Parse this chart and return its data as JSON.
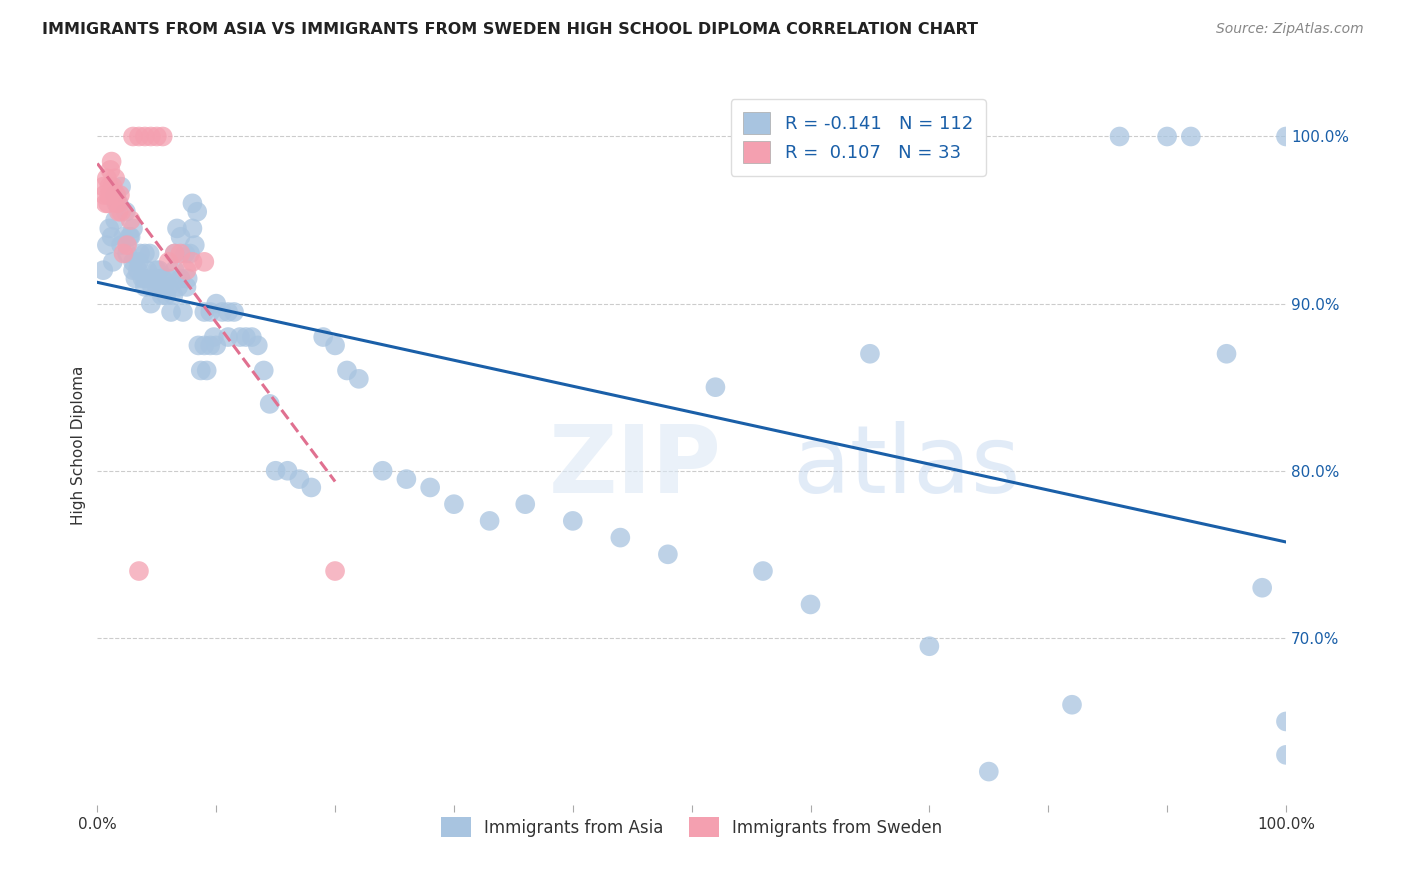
{
  "title": "IMMIGRANTS FROM ASIA VS IMMIGRANTS FROM SWEDEN HIGH SCHOOL DIPLOMA CORRELATION CHART",
  "source": "Source: ZipAtlas.com",
  "ylabel": "High School Diploma",
  "xlim": [
    0.0,
    1.0
  ],
  "ylim": [
    0.6,
    1.03
  ],
  "y_ticks_right": [
    0.7,
    0.8,
    0.9,
    1.0
  ],
  "y_tick_labels_right": [
    "70.0%",
    "80.0%",
    "90.0%",
    "100.0%"
  ],
  "asia_R": -0.141,
  "asia_N": 112,
  "sweden_R": 0.107,
  "sweden_N": 33,
  "asia_color": "#a8c4e0",
  "sweden_color": "#f4a0b0",
  "asia_line_color": "#1a5fa8",
  "sweden_line_color": "#e07090",
  "watermark_zip": "ZIP",
  "watermark_atlas": "atlas",
  "asia_x": [
    0.005,
    0.008,
    0.01,
    0.012,
    0.013,
    0.015,
    0.015,
    0.016,
    0.018,
    0.02,
    0.02,
    0.022,
    0.024,
    0.025,
    0.027,
    0.028,
    0.03,
    0.03,
    0.03,
    0.032,
    0.034,
    0.035,
    0.036,
    0.038,
    0.04,
    0.04,
    0.04,
    0.042,
    0.044,
    0.045,
    0.046,
    0.048,
    0.05,
    0.05,
    0.05,
    0.052,
    0.054,
    0.055,
    0.055,
    0.056,
    0.058,
    0.06,
    0.06,
    0.062,
    0.064,
    0.065,
    0.065,
    0.067,
    0.068,
    0.07,
    0.07,
    0.072,
    0.074,
    0.075,
    0.076,
    0.078,
    0.08,
    0.08,
    0.082,
    0.084,
    0.085,
    0.087,
    0.09,
    0.09,
    0.092,
    0.095,
    0.095,
    0.098,
    0.1,
    0.1,
    0.105,
    0.11,
    0.11,
    0.115,
    0.12,
    0.125,
    0.13,
    0.135,
    0.14,
    0.145,
    0.15,
    0.16,
    0.17,
    0.18,
    0.19,
    0.2,
    0.21,
    0.22,
    0.24,
    0.26,
    0.28,
    0.3,
    0.33,
    0.36,
    0.4,
    0.44,
    0.48,
    0.52,
    0.56,
    0.6,
    0.65,
    0.7,
    0.75,
    0.82,
    0.86,
    0.9,
    0.92,
    0.95,
    0.98,
    1.0,
    1.0,
    1.0
  ],
  "asia_y": [
    0.92,
    0.935,
    0.945,
    0.94,
    0.925,
    0.95,
    0.965,
    0.96,
    0.96,
    0.97,
    0.935,
    0.94,
    0.955,
    0.93,
    0.94,
    0.94,
    0.945,
    0.92,
    0.925,
    0.915,
    0.92,
    0.925,
    0.93,
    0.915,
    0.93,
    0.91,
    0.915,
    0.92,
    0.93,
    0.9,
    0.91,
    0.915,
    0.92,
    0.91,
    0.915,
    0.92,
    0.905,
    0.91,
    0.915,
    0.91,
    0.905,
    0.915,
    0.91,
    0.895,
    0.905,
    0.92,
    0.93,
    0.945,
    0.91,
    0.915,
    0.94,
    0.895,
    0.93,
    0.91,
    0.915,
    0.93,
    0.945,
    0.96,
    0.935,
    0.955,
    0.875,
    0.86,
    0.875,
    0.895,
    0.86,
    0.875,
    0.895,
    0.88,
    0.9,
    0.875,
    0.895,
    0.88,
    0.895,
    0.895,
    0.88,
    0.88,
    0.88,
    0.875,
    0.86,
    0.84,
    0.8,
    0.8,
    0.795,
    0.79,
    0.88,
    0.875,
    0.86,
    0.855,
    0.8,
    0.795,
    0.79,
    0.78,
    0.77,
    0.78,
    0.77,
    0.76,
    0.75,
    0.85,
    0.74,
    0.72,
    0.87,
    0.695,
    0.62,
    0.66,
    1.0,
    1.0,
    1.0,
    0.87,
    0.73,
    0.63,
    0.65,
    1.0
  ],
  "sweden_x": [
    0.005,
    0.006,
    0.007,
    0.008,
    0.009,
    0.01,
    0.01,
    0.011,
    0.012,
    0.013,
    0.015,
    0.016,
    0.017,
    0.018,
    0.019,
    0.02,
    0.022,
    0.025,
    0.028,
    0.03,
    0.035,
    0.04,
    0.045,
    0.05,
    0.055,
    0.06,
    0.065,
    0.07,
    0.075,
    0.08,
    0.09,
    0.2,
    0.035
  ],
  "sweden_y": [
    0.97,
    0.965,
    0.96,
    0.975,
    0.96,
    0.965,
    0.97,
    0.98,
    0.985,
    0.97,
    0.975,
    0.965,
    0.96,
    0.955,
    0.965,
    0.955,
    0.93,
    0.935,
    0.95,
    1.0,
    1.0,
    1.0,
    1.0,
    1.0,
    1.0,
    0.925,
    0.93,
    0.93,
    0.92,
    0.925,
    0.925,
    0.74,
    0.74
  ]
}
